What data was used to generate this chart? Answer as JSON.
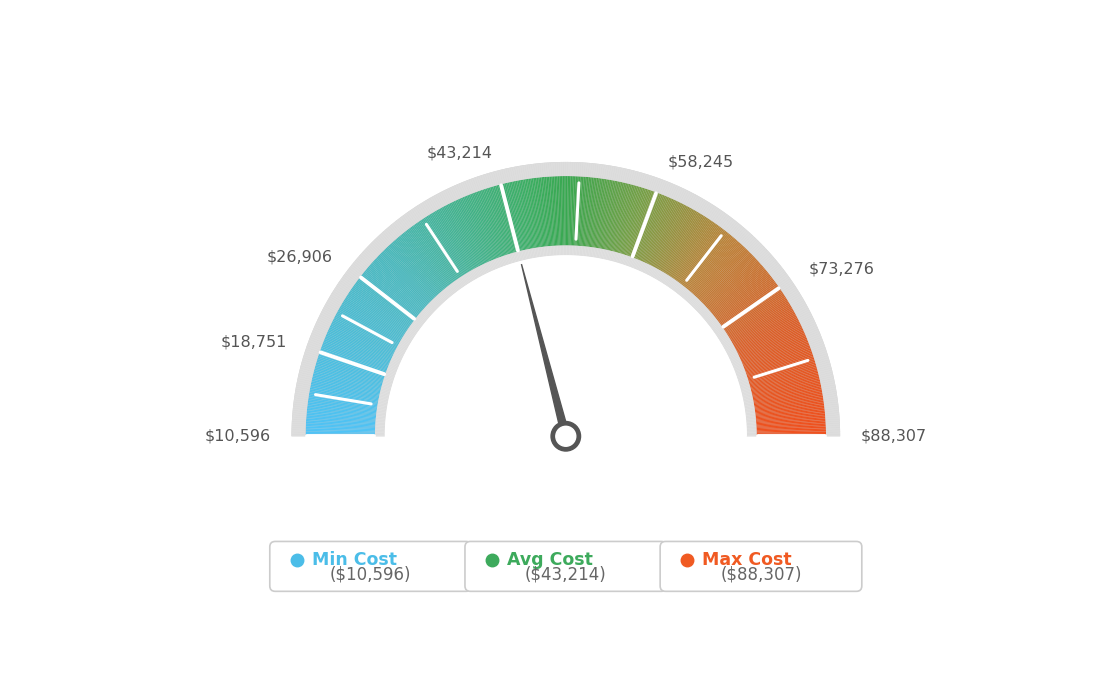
{
  "min_value": 10596,
  "max_value": 88307,
  "avg_value": 43214,
  "labels": [
    "$10,596",
    "$18,751",
    "$26,906",
    "$43,214",
    "$58,245",
    "$73,276",
    "$88,307"
  ],
  "label_values": [
    10596,
    18751,
    26906,
    43214,
    58245,
    73276,
    88307
  ],
  "min_cost_label": "Min Cost",
  "avg_cost_label": "Avg Cost",
  "max_cost_label": "Max Cost",
  "min_cost_value": "($10,596)",
  "avg_cost_value": "($43,214)",
  "max_cost_value": "($88,307)",
  "color_min": "#4FC3F7",
  "color_avg": "#3DAA5C",
  "color_max": "#F05A22",
  "background_color": "#FFFFFF",
  "needle_color": "#555555",
  "color_stops": [
    [
      0.0,
      [
        79,
        195,
        247
      ]
    ],
    [
      0.25,
      [
        72,
        185,
        190
      ]
    ],
    [
      0.45,
      [
        61,
        175,
        100
      ]
    ],
    [
      0.5,
      [
        56,
        168,
        80
      ]
    ],
    [
      0.6,
      [
        120,
        160,
        70
      ]
    ],
    [
      0.72,
      [
        190,
        130,
        55
      ]
    ],
    [
      0.85,
      [
        220,
        95,
        40
      ]
    ],
    [
      1.0,
      [
        240,
        80,
        30
      ]
    ]
  ]
}
